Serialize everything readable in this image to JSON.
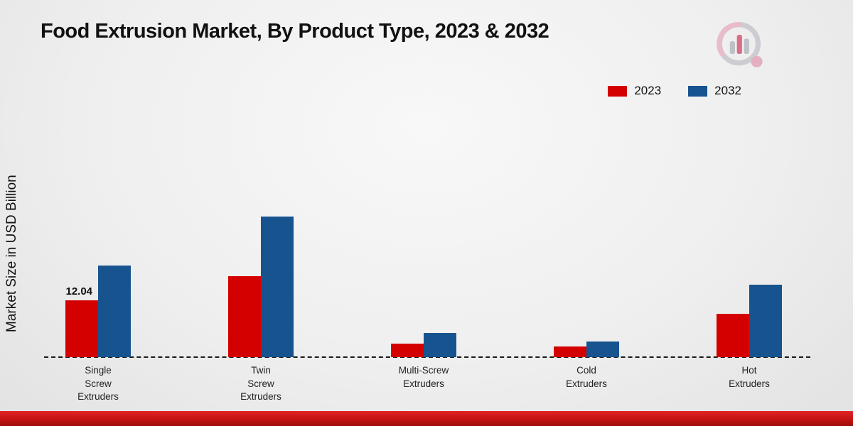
{
  "title": "Food Extrusion Market, By Product Type, 2023 & 2032",
  "ylabel": "Market Size in USD Billion",
  "colors": {
    "series_2023": "#d40000",
    "series_2032": "#17538f",
    "footer_band": "#c41212"
  },
  "chart_data": {
    "type": "bar",
    "title": "Food Extrusion Market, By Product Type, 2023 & 2032",
    "xlabel": "",
    "ylabel": "Market Size in USD Billion",
    "categories": [
      "Single Screw Extruders",
      "Twin Screw Extruders",
      "Multi-Screw Extruders",
      "Cold Extruders",
      "Hot Extruders"
    ],
    "category_lines": [
      [
        "Single",
        "Screw",
        "Extruders"
      ],
      [
        "Twin",
        "Screw",
        "Extruders"
      ],
      [
        "Multi-Screw",
        "Extruders"
      ],
      [
        "Cold",
        "Extruders"
      ],
      [
        "Hot",
        "Extruders"
      ]
    ],
    "series": [
      {
        "name": "2023",
        "color": "#d40000",
        "values": [
          12.04,
          17.1,
          2.9,
          2.2,
          9.1
        ],
        "labels": [
          "12.04",
          "",
          "",
          "",
          ""
        ]
      },
      {
        "name": "2032",
        "color": "#17538f",
        "values": [
          19.3,
          29.7,
          5.1,
          3.3,
          15.3
        ],
        "labels": [
          "",
          "",
          "",
          "",
          ""
        ]
      }
    ],
    "ylim": [
      0,
      45
    ],
    "grid": false,
    "baseline_dashed": true,
    "legend_position": "top-right",
    "data_labels": [
      {
        "series": "2023",
        "category": "Single Screw Extruders",
        "text": "12.04"
      }
    ]
  },
  "legend": [
    {
      "label": "2023",
      "color": "#d40000"
    },
    {
      "label": "2032",
      "color": "#17538f"
    }
  ],
  "logo": {
    "name": "bar-chart-magnifier-logo"
  }
}
